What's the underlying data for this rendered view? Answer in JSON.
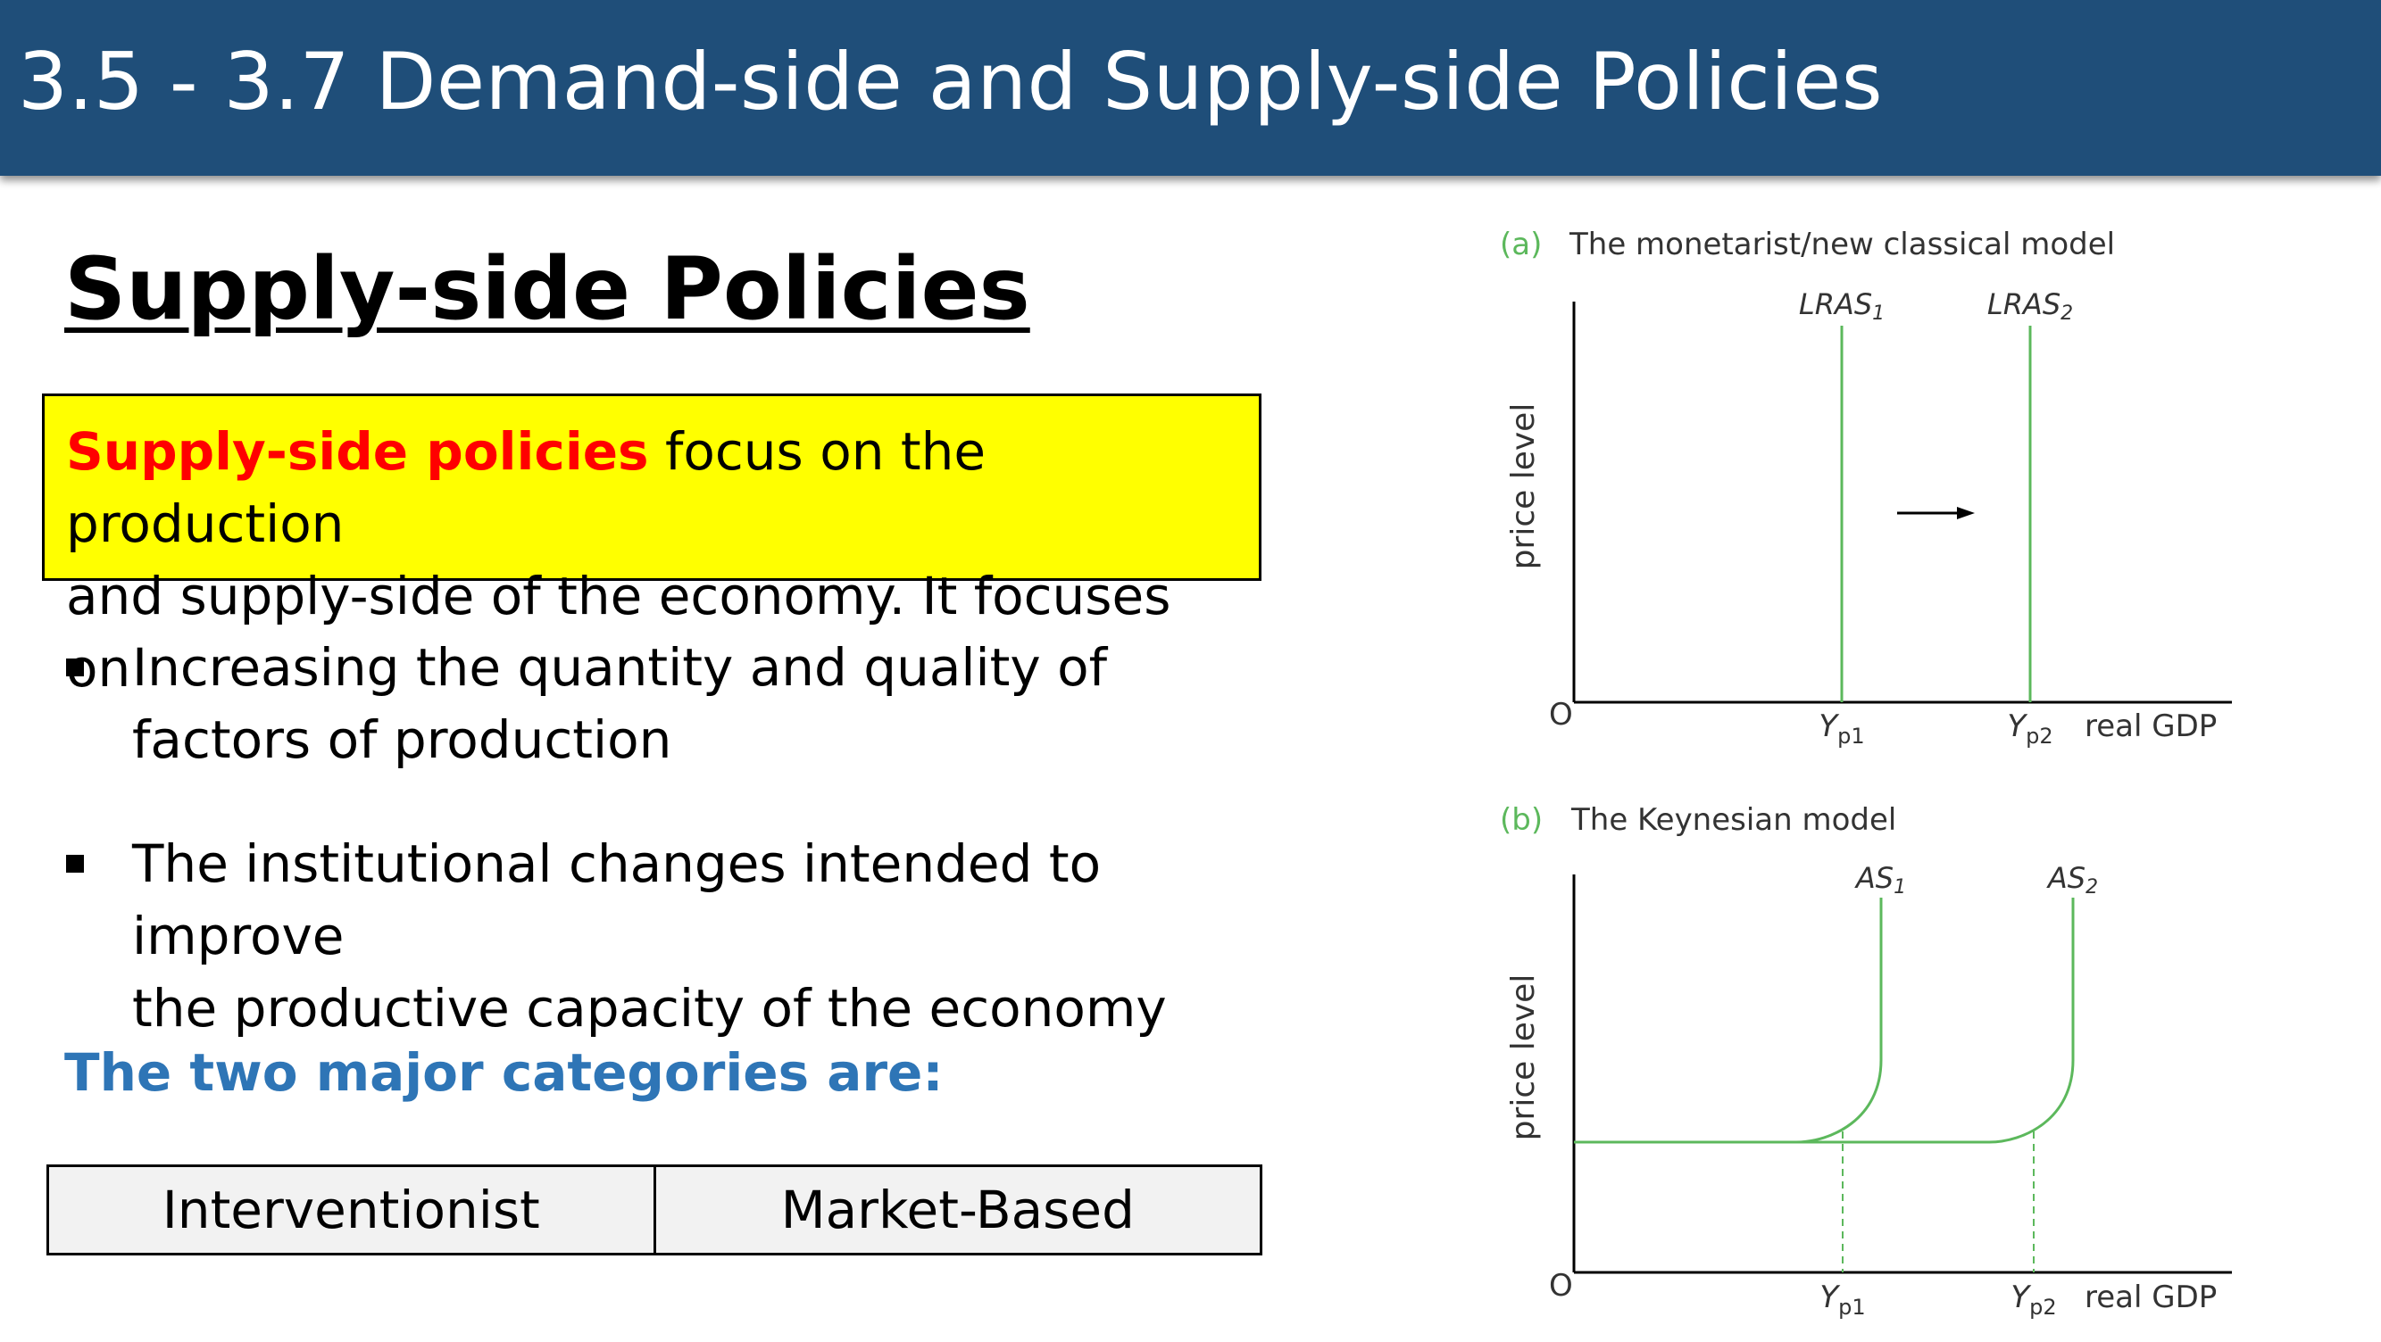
{
  "header": {
    "title": "3.5 - 3.7 Demand-side and Supply-side Policies"
  },
  "section": {
    "title": "Supply-side Policies"
  },
  "definition": {
    "term": "Supply-side policies",
    "line1_rest": " focus on the production",
    "line2": "and supply-side of the economy. It focuses on"
  },
  "bullets": [
    {
      "line1": "Increasing the quantity and quality of",
      "line2": "factors of production"
    },
    {
      "line1": "The institutional changes intended to improve",
      "line2": "the productive capacity of the economy"
    }
  ],
  "categories": {
    "heading": "The two major categories are:",
    "items": [
      "Interventionist",
      "Market-Based"
    ]
  },
  "diagrams": {
    "a": {
      "tag": "(a)",
      "title": "The monetarist/new classical model",
      "ylabel": "price level",
      "origin": "O",
      "xlabel": "real GDP",
      "curve1": {
        "base": "LRAS",
        "sub": "1"
      },
      "curve2": {
        "base": "LRAS",
        "sub": "2"
      },
      "tick1": {
        "base": "Y",
        "sub": "p1"
      },
      "tick2": {
        "base": "Y",
        "sub": "p2"
      }
    },
    "b": {
      "tag": "(b)",
      "title": "The Keynesian model",
      "ylabel": "price level",
      "origin": "O",
      "xlabel": "real GDP",
      "curve1": {
        "base": "AS",
        "sub": "1"
      },
      "curve2": {
        "base": "AS",
        "sub": "2"
      },
      "tick1": {
        "base": "Y",
        "sub": "p1"
      },
      "tick2": {
        "base": "Y",
        "sub": "p2"
      }
    },
    "colors": {
      "curve": "#5cb85c",
      "tag": "#5cb85c",
      "axis": "#000000"
    }
  }
}
